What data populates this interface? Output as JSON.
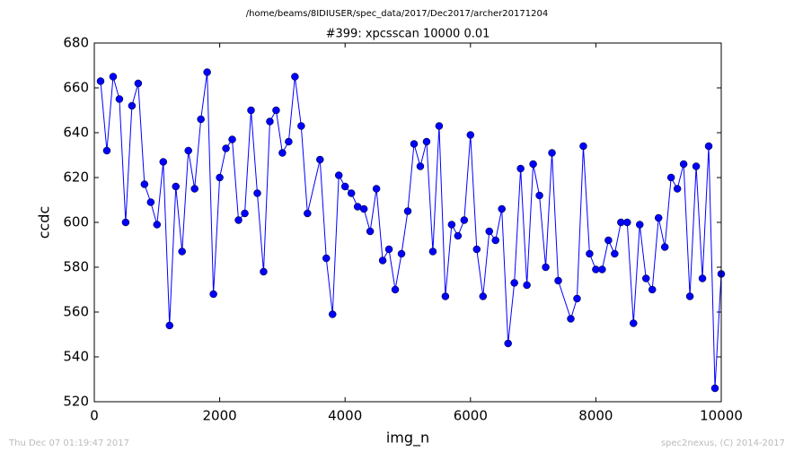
{
  "chart_data": {
    "type": "line",
    "suptitle": "/home/beams/8IDIUSER/spec_data/2017/Dec2017/archer20171204",
    "title": "#399: xpcsscan 10000 0.01",
    "x_label": "img_n",
    "y_label": "ccdc",
    "footer_left": "Thu Dec 07 01:19:47 2017",
    "footer_right": "spec2nexus, (C) 2014-2017",
    "x": [
      100,
      200,
      300,
      400,
      500,
      600,
      700,
      800,
      900,
      1000,
      1100,
      1200,
      1300,
      1400,
      1500,
      1600,
      1700,
      1800,
      1900,
      2000,
      2100,
      2200,
      2300,
      2400,
      2500,
      2600,
      2700,
      2800,
      2900,
      3000,
      3100,
      3200,
      3300,
      3400,
      3600,
      3700,
      3800,
      3900,
      4000,
      4100,
      4200,
      4300,
      4400,
      4500,
      4600,
      4700,
      4800,
      4900,
      5000,
      5100,
      5200,
      5300,
      5400,
      5500,
      5600,
      5700,
      5800,
      5900,
      6000,
      6100,
      6200,
      6300,
      6400,
      6500,
      6600,
      6700,
      6800,
      6900,
      7000,
      7100,
      7200,
      7300,
      7400,
      7600,
      7700,
      7800,
      7900,
      8000,
      8100,
      8200,
      8300,
      8400,
      8500,
      8600,
      8700,
      8800,
      8900,
      9000,
      9100,
      9200,
      9300,
      9400,
      9500,
      9600,
      9700,
      9800,
      9900,
      10000
    ],
    "series": [
      {
        "name": "ccdc",
        "color": "#0000ff",
        "values": [
          663,
          632,
          665,
          655,
          600,
          652,
          662,
          617,
          609,
          599,
          627,
          554,
          616,
          587,
          632,
          615,
          646,
          667,
          568,
          620,
          633,
          637,
          601,
          604,
          650,
          613,
          578,
          645,
          650,
          631,
          636,
          665,
          643,
          604,
          628,
          584,
          559,
          621,
          616,
          613,
          607,
          606,
          596,
          615,
          583,
          588,
          570,
          586,
          605,
          635,
          625,
          636,
          587,
          643,
          567,
          599,
          594,
          601,
          639,
          588,
          567,
          596,
          592,
          606,
          546,
          573,
          624,
          572,
          626,
          612,
          580,
          631,
          574,
          557,
          566,
          634,
          586,
          579,
          579,
          592,
          586,
          600,
          600,
          555,
          599,
          575,
          570,
          602,
          589,
          620,
          615,
          626,
          567,
          625,
          575,
          634,
          526,
          577
        ]
      }
    ],
    "xlim": [
      0,
      10000
    ],
    "ylim": [
      520,
      680
    ],
    "xticks": [
      0,
      2000,
      4000,
      6000,
      8000,
      10000
    ],
    "yticks": [
      520,
      540,
      560,
      580,
      600,
      620,
      640,
      660,
      680
    ]
  }
}
